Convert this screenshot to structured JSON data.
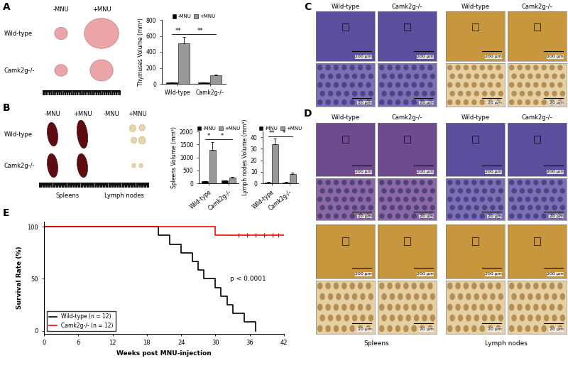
{
  "panel_labels": [
    "A",
    "B",
    "C",
    "D",
    "E"
  ],
  "chart_data": [
    {
      "type": "bar",
      "y_label": "Thymuses Volume (mm³)",
      "categories": [
        "Wild-type",
        "Camk2g-/-"
      ],
      "series": [
        {
          "name": "-MNU",
          "color": "#000000",
          "values": [
            15,
            18
          ],
          "errors": [
            3,
            3
          ]
        },
        {
          "name": "+MNU",
          "color": "#999999",
          "values": [
            510,
            110
          ],
          "errors": [
            80,
            10
          ]
        }
      ],
      "ylim": [
        0,
        800
      ],
      "yticks": [
        0,
        200,
        400,
        600,
        800
      ],
      "legend": "top",
      "brackets": [
        {
          "text": "**",
          "from": [
            0,
            0
          ],
          "to": [
            0,
            1
          ],
          "y": 620
        },
        {
          "text": "**",
          "from": [
            0,
            1
          ],
          "to": [
            1,
            1
          ],
          "y": 620
        }
      ]
    },
    {
      "type": "bar",
      "y_label": "Spleens Volume (mm³)",
      "categories": [
        "Wild-type",
        "Camk2g-/-"
      ],
      "series": [
        {
          "name": "-MNU",
          "color": "#000000",
          "values": [
            80,
            100
          ],
          "errors": [
            10,
            10
          ]
        },
        {
          "name": "+MNU",
          "color": "#999999",
          "values": [
            1300,
            230
          ],
          "errors": [
            280,
            20
          ]
        }
      ],
      "ylim": [
        0,
        2000
      ],
      "yticks": [
        0,
        500,
        1000,
        1500,
        2000
      ],
      "legend": "top",
      "brackets": [
        {
          "text": "*",
          "from": [
            0,
            0
          ],
          "to": [
            0,
            1
          ],
          "y": 1700
        },
        {
          "text": "*",
          "from": [
            0,
            1
          ],
          "to": [
            1,
            1
          ],
          "y": 1700
        }
      ]
    },
    {
      "type": "bar",
      "y_label": "Lymph nodes Volume (mm³)",
      "categories": [
        "Wild-type",
        "Camk2g-/-"
      ],
      "series": [
        {
          "name": "-MNU",
          "color": "#000000",
          "values": [
            0.8,
            0.8
          ],
          "errors": [
            0.2,
            0.2
          ]
        },
        {
          "name": "+MNU",
          "color": "#999999",
          "values": [
            34,
            8
          ],
          "errors": [
            5,
            1.5
          ]
        }
      ],
      "ylim": [
        0,
        45
      ],
      "yticks": [
        0,
        10,
        20,
        30,
        40
      ],
      "legend": "top",
      "brackets": [
        {
          "text": "**",
          "from": [
            0,
            0
          ],
          "to": [
            0,
            1
          ],
          "y": 40.5
        },
        {
          "text": "*",
          "from": [
            0,
            1
          ],
          "to": [
            1,
            1
          ],
          "y": 40.5
        }
      ]
    },
    {
      "type": "line",
      "x_label": "Weeks post MNU-injection",
      "y_label": "Survival Rate (%)",
      "xlim": [
        0,
        42
      ],
      "xticks": [
        0,
        6,
        12,
        18,
        24,
        30,
        36,
        42
      ],
      "ylim": [
        -3,
        105
      ],
      "yticks": [
        0,
        50,
        100
      ],
      "legend": "lower left",
      "annotations": [
        {
          "text": "p < 0.0001",
          "x": 32.5,
          "y": 50
        }
      ],
      "series": [
        {
          "name": "Wild-type (n = 12)",
          "color": "#000000",
          "line_style": "steps",
          "x": [
            0,
            20,
            22,
            24,
            26,
            27,
            28,
            30,
            31,
            32,
            33,
            35,
            37
          ],
          "values": [
            100,
            91.7,
            83.3,
            75,
            66.7,
            58.3,
            50,
            41.7,
            33.3,
            25,
            16.7,
            8.3,
            0
          ]
        },
        {
          "name": "Camk2g-/- (n = 12)",
          "color": "#ff0000",
          "line_style": "steps",
          "x": [
            0,
            30,
            42
          ],
          "values": [
            100,
            91.7,
            91.7
          ],
          "censored": [
            34,
            35.5,
            37,
            38.5,
            40,
            41
          ]
        }
      ]
    }
  ],
  "photos_A": {
    "columns": [
      "-MNU",
      "+MNU"
    ],
    "rows": [
      "Wild-type",
      "Camk2g-/-"
    ]
  },
  "photos_B": {
    "rows": [
      "Wild-type",
      "Camk2g-/-"
    ],
    "groups": [
      {
        "name": "Spleens",
        "columns": [
          "-MNU",
          "+MNU"
        ]
      },
      {
        "name": "Lymph nodes",
        "columns": [
          "-MNU",
          "+MNU"
        ]
      }
    ]
  },
  "histology_C": {
    "columns": [
      "Wild-type",
      "Camk2g-/-",
      "Wild-type",
      "Camk2g-/-"
    ],
    "scale_bars": [
      "200 μm",
      "20 μm"
    ]
  },
  "histology_D": {
    "columns": [
      "Wild-type",
      "Camk2g-/-",
      "Wild-type",
      "Camk2g-/-"
    ],
    "groups": [
      "Spleens",
      "Lymph nodes"
    ],
    "scale_bars": [
      "200 μm",
      "20 μm"
    ]
  }
}
